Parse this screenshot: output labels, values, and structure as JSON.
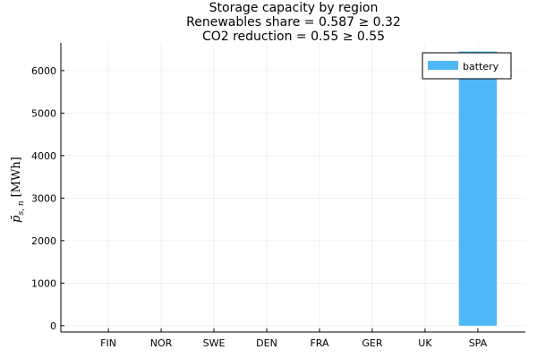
{
  "chart_data": {
    "type": "bar",
    "title_lines": [
      "Storage capacity by region",
      "Renewables share = 0.587 ≥ 0.32",
      "CO2 reduction = 0.55 ≥ 0.55"
    ],
    "ylabel": {
      "symbol": "p̄",
      "subscript": "s, n",
      "unit": "[MWh]"
    },
    "xlabel": "",
    "categories": [
      "FIN",
      "NOR",
      "SWE",
      "DEN",
      "FRA",
      "GER",
      "UK",
      "SPA"
    ],
    "series": [
      {
        "name": "battery",
        "color": "#4db8f5",
        "values": [
          0,
          0,
          0,
          0,
          0,
          0,
          0,
          6450
        ]
      }
    ],
    "ylim": [
      -150,
      6650
    ],
    "yticks": [
      0,
      1000,
      2000,
      3000,
      4000,
      5000,
      6000
    ],
    "grid": true,
    "legend_position": "top-right"
  }
}
